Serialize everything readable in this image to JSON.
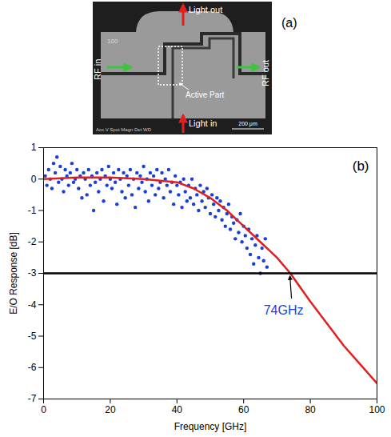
{
  "panel_a": {
    "label": "(a)",
    "texts": {
      "light_out": "Light out",
      "light_in": "Light in",
      "rf_in": "RF in",
      "rf_out": "RF out",
      "active_part": "Active Part",
      "chip_id": "100",
      "scale_bar": "200 μm",
      "sem_info": "Acc.V Spot Magn Det WD"
    }
  },
  "chart_data": {
    "type": "scatter",
    "panel_label": "(b)",
    "x_label": "Frequency [GHz]",
    "y_label": "E/O Response [dB]",
    "xlim": [
      0,
      100
    ],
    "xticks": [
      0,
      20,
      40,
      60,
      80,
      100
    ],
    "ylim": [
      -7,
      1
    ],
    "yticks": [
      -7,
      -6,
      -5,
      -4,
      -3,
      -2,
      -1,
      0,
      1
    ],
    "grid": false,
    "series": [
      {
        "type": "scatter",
        "color": "#1a3fd6",
        "marker": "circle",
        "x": [
          0.5,
          1,
          1.5,
          2,
          2.5,
          3,
          3.5,
          4,
          4.5,
          5,
          5.5,
          6,
          6.5,
          7,
          7.5,
          8,
          8.5,
          9,
          9.5,
          10,
          10.5,
          11,
          11.5,
          12,
          12.5,
          13,
          13.5,
          14,
          14.5,
          15,
          15.5,
          16,
          16.5,
          17,
          17.5,
          18,
          18.5,
          19,
          19.5,
          20,
          20.5,
          21,
          21.5,
          22,
          22.5,
          23,
          23.5,
          24,
          24.5,
          25,
          25.5,
          26,
          26.5,
          27,
          27.5,
          28,
          28.5,
          29,
          29.5,
          30,
          30.5,
          31,
          31.5,
          32,
          32.5,
          33,
          33.5,
          34,
          34.5,
          35,
          35.5,
          36,
          36.5,
          37,
          37.5,
          38,
          38.5,
          39,
          39.5,
          40,
          40.5,
          41,
          41.5,
          42,
          42.5,
          43,
          43.5,
          44,
          44.5,
          45,
          45.5,
          46,
          46.5,
          47,
          47.5,
          48,
          48.5,
          49,
          49.5,
          50,
          50.5,
          51,
          51.5,
          52,
          52.5,
          53,
          53.5,
          54,
          54.5,
          55,
          55.5,
          56,
          56.5,
          57,
          57.5,
          58,
          58.5,
          59,
          59.5,
          60,
          60.5,
          61,
          61.5,
          62,
          62.5,
          63,
          63.5,
          64,
          64.5,
          65,
          65.5,
          66,
          66.5,
          67
        ],
        "values": [
          0.1,
          -0.2,
          0.3,
          0.0,
          -0.3,
          0.5,
          0.2,
          0.7,
          -0.1,
          0.4,
          0.0,
          -0.4,
          0.3,
          0.1,
          -0.2,
          0.2,
          0.5,
          -0.1,
          0.0,
          0.3,
          -0.3,
          0.1,
          -0.6,
          0.2,
          0.0,
          -0.5,
          0.3,
          -0.2,
          0.1,
          -1.0,
          -0.1,
          0.2,
          -0.4,
          0.0,
          0.3,
          -0.7,
          0.1,
          -0.2,
          0.4,
          0.0,
          -0.3,
          0.2,
          -0.1,
          -0.8,
          0.3,
          0.0,
          -0.4,
          0.2,
          -0.6,
          0.1,
          -0.2,
          0.3,
          -0.5,
          0.0,
          -0.9,
          0.2,
          -0.3,
          0.1,
          -0.1,
          0.4,
          -0.4,
          0.0,
          -0.7,
          0.2,
          -0.2,
          0.1,
          -0.5,
          0.3,
          -0.3,
          -0.1,
          0.2,
          -0.6,
          0.0,
          -0.2,
          0.3,
          -0.4,
          -0.1,
          -0.8,
          0.1,
          -0.2,
          -0.5,
          -0.1,
          -0.9,
          0.0,
          -0.4,
          -0.7,
          -0.2,
          -0.6,
          0.0,
          -0.8,
          -0.3,
          -0.5,
          -1.0,
          -0.2,
          -0.7,
          -0.4,
          -0.9,
          -0.3,
          -0.6,
          -1.1,
          -0.5,
          -0.8,
          -1.2,
          -0.6,
          -1.0,
          -0.7,
          -1.3,
          -0.9,
          -1.5,
          -1.1,
          -0.8,
          -1.6,
          -1.2,
          -1.4,
          -1.9,
          -1.3,
          -1.7,
          -1.1,
          -2.0,
          -1.5,
          -1.8,
          -2.2,
          -1.6,
          -2.4,
          -1.9,
          -2.7,
          -2.1,
          -1.8,
          -2.5,
          -3.0,
          -2.2,
          -2.6,
          -1.9,
          -2.8
        ]
      },
      {
        "type": "line",
        "color": "#e02020",
        "line_style": "solid",
        "x": [
          0,
          10,
          20,
          30,
          40,
          45,
          50,
          55,
          60,
          65,
          70,
          74,
          80,
          85,
          90,
          95,
          100
        ],
        "values": [
          0,
          0.05,
          0.05,
          0,
          -0.1,
          -0.3,
          -0.6,
          -1.0,
          -1.5,
          -2.0,
          -2.5,
          -3.0,
          -3.9,
          -4.6,
          -5.3,
          -5.9,
          -6.5
        ]
      }
    ],
    "reference_lines": [
      {
        "value": -3,
        "color": "#000000"
      }
    ],
    "annotations": [
      {
        "text": "74GHz",
        "x": 74,
        "y": -3,
        "color": "#1a3fd6"
      }
    ]
  }
}
